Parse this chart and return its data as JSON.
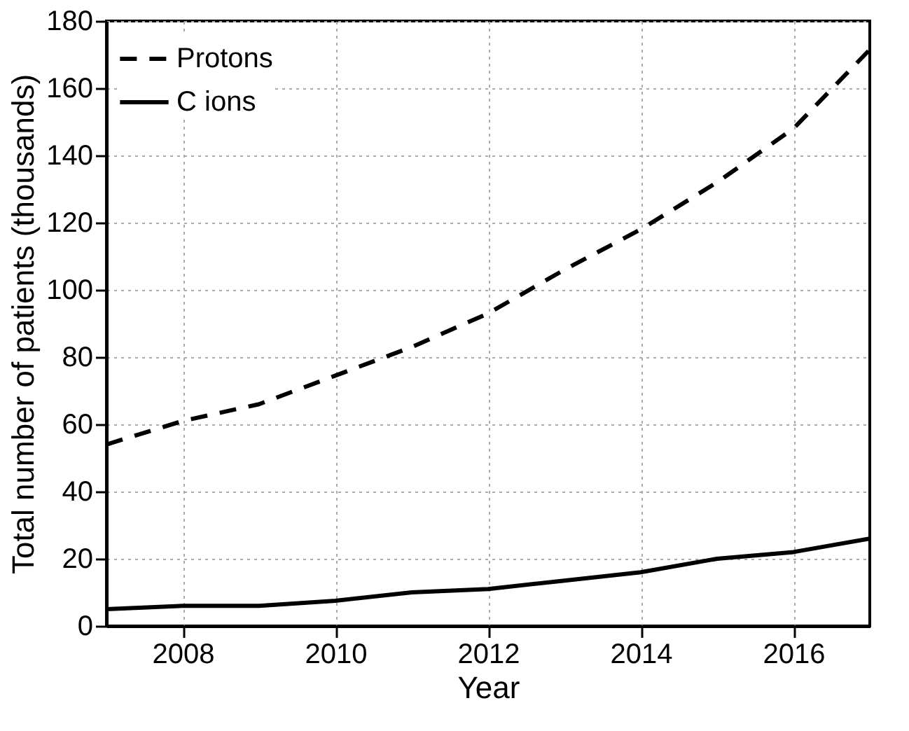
{
  "chart_data": {
    "type": "line",
    "xlabel": "Year",
    "ylabel": "Total number of patients (thousands)",
    "x": [
      2007,
      2008,
      2009,
      2010,
      2011,
      2012,
      2013,
      2014,
      2015,
      2016,
      2017
    ],
    "series": [
      {
        "name": "Protons",
        "color": "#000000",
        "line_style": "dashed",
        "values": [
          54,
          61,
          66,
          74.5,
          83,
          93,
          106,
          118,
          132,
          148,
          171.5
        ]
      },
      {
        "name": "C ions",
        "color": "#000000",
        "line_style": "solid",
        "values": [
          5,
          6,
          6,
          7.5,
          10,
          11,
          13.5,
          16,
          20,
          22,
          26
        ]
      }
    ],
    "xlim": [
      2007,
      2017
    ],
    "xticks": [
      2008,
      2010,
      2012,
      2014,
      2016
    ],
    "ylim": [
      0,
      180
    ],
    "yticks": [
      0,
      20,
      40,
      60,
      80,
      100,
      120,
      140,
      160,
      180
    ],
    "grid": true,
    "legend": "top left",
    "marker": "none"
  }
}
